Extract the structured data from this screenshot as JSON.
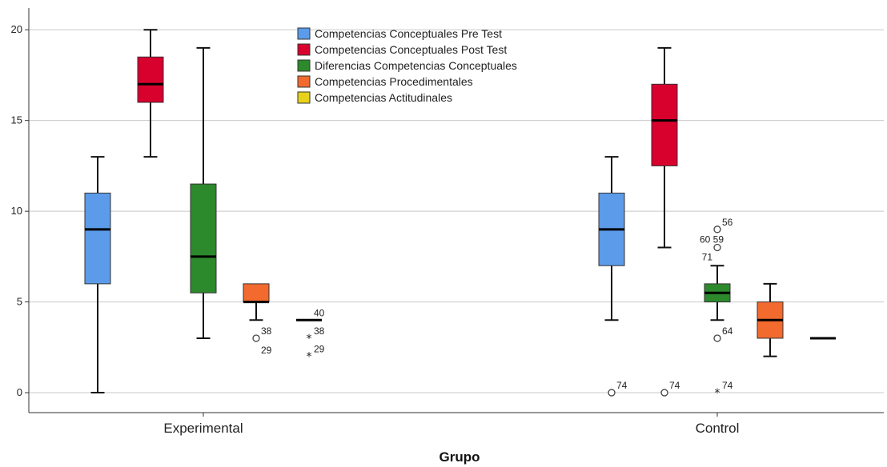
{
  "chart_data": {
    "type": "boxplot",
    "xlabel": "Grupo",
    "ylabel": "",
    "ylim": [
      -1.1,
      21.2
    ],
    "yticks": [
      0,
      5,
      10,
      15,
      20
    ],
    "grid": true,
    "legend_position": "top-center",
    "categories": [
      "Experimental",
      "Control"
    ],
    "series": [
      {
        "name": "Competencias Conceptuales Pre Test",
        "color": "#5b9bea",
        "boxes": [
          {
            "category": "Experimental",
            "min": 0,
            "q1": 6,
            "median": 9,
            "q3": 11,
            "max": 13,
            "outliers": []
          },
          {
            "category": "Control",
            "min": 4,
            "q1": 7,
            "median": 9,
            "q3": 11,
            "max": 13,
            "outliers": [
              {
                "value": 0,
                "label": "74",
                "marker": "circle"
              }
            ]
          }
        ]
      },
      {
        "name": "Competencias Conceptuales Post Test",
        "color": "#d8002d",
        "boxes": [
          {
            "category": "Experimental",
            "min": 13,
            "q1": 16,
            "median": 17,
            "q3": 18.5,
            "max": 20,
            "outliers": []
          },
          {
            "category": "Control",
            "min": 8,
            "q1": 12.5,
            "median": 15,
            "q3": 17,
            "max": 19,
            "outliers": [
              {
                "value": 0,
                "label": "74",
                "marker": "circle"
              }
            ]
          }
        ]
      },
      {
        "name": "Diferencias Competencias Conceptuales",
        "color": "#2c8a2c",
        "boxes": [
          {
            "category": "Experimental",
            "min": 3,
            "q1": 5.5,
            "median": 7.5,
            "q3": 11.5,
            "max": 19,
            "outliers": []
          },
          {
            "category": "Control",
            "min": 4,
            "q1": 5,
            "median": 5.5,
            "q3": 6,
            "max": 7,
            "outliers": [
              {
                "value": 9,
                "label": "56",
                "marker": "circle"
              },
              {
                "value": 8,
                "label": "60 59",
                "marker": "circle"
              },
              {
                "value": 8,
                "label": "71",
                "marker": "circle"
              },
              {
                "value": 3,
                "label": "64",
                "marker": "circle"
              },
              {
                "value": 0,
                "label": "74",
                "marker": "star"
              }
            ]
          }
        ]
      },
      {
        "name": "Competencias Procedimentales",
        "color": "#f26a2e",
        "boxes": [
          {
            "category": "Experimental",
            "min": 4,
            "q1": 5,
            "median": 5,
            "q3": 6,
            "max": 6,
            "outliers": [
              {
                "value": 3,
                "label": "38",
                "marker": "circle"
              },
              {
                "value": 3,
                "label": "29",
                "marker": "circle"
              }
            ]
          },
          {
            "category": "Control",
            "min": 2,
            "q1": 3,
            "median": 4,
            "q3": 5,
            "max": 6,
            "outliers": []
          }
        ]
      },
      {
        "name": "Competencias Actitudinales",
        "color": "#e6d21a",
        "boxes": [
          {
            "category": "Experimental",
            "min": 4,
            "q1": 4,
            "median": 4,
            "q3": 4,
            "max": 4,
            "outliers": [
              {
                "value": 4,
                "label": "40",
                "marker": "none"
              },
              {
                "value": 3,
                "label": "38",
                "marker": "star"
              },
              {
                "value": 2,
                "label": "29",
                "marker": "star"
              }
            ]
          },
          {
            "category": "Control",
            "min": 3,
            "q1": 3,
            "median": 3,
            "q3": 3,
            "max": 3,
            "outliers": []
          }
        ]
      }
    ]
  }
}
